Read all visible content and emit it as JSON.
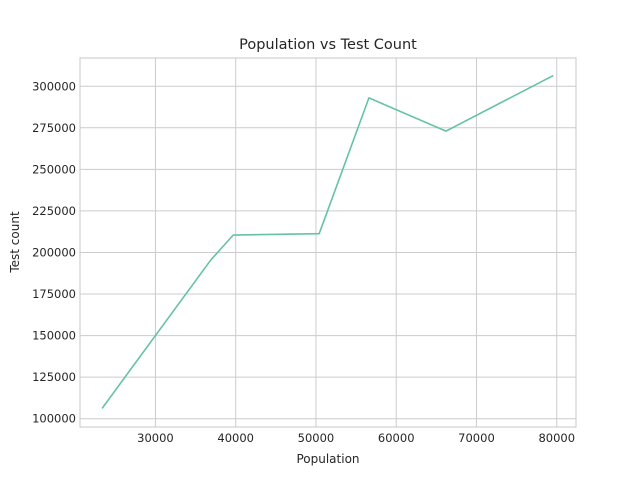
{
  "chart_data": {
    "type": "line",
    "title": "Population vs Test Count",
    "xlabel": "Population",
    "ylabel": "Test count",
    "xlim": [
      20600,
      82400
    ],
    "ylim": [
      95000,
      317000
    ],
    "x_ticks": [
      30000,
      40000,
      50000,
      60000,
      70000,
      80000
    ],
    "y_ticks": [
      100000,
      125000,
      150000,
      175000,
      200000,
      225000,
      250000,
      275000,
      300000
    ],
    "x_tick_labels": [
      "30000",
      "40000",
      "50000",
      "60000",
      "70000",
      "80000"
    ],
    "y_tick_labels": [
      "100000",
      "125000",
      "150000",
      "175000",
      "200000",
      "225000",
      "250000",
      "275000",
      "300000"
    ],
    "grid": true,
    "series": [
      {
        "color": "#66c2a5",
        "x": [
          23400,
          36900,
          39700,
          50400,
          56600,
          66200,
          79500
        ],
        "y": [
          106500,
          195500,
          210500,
          211300,
          293000,
          273000,
          306300
        ]
      }
    ]
  }
}
